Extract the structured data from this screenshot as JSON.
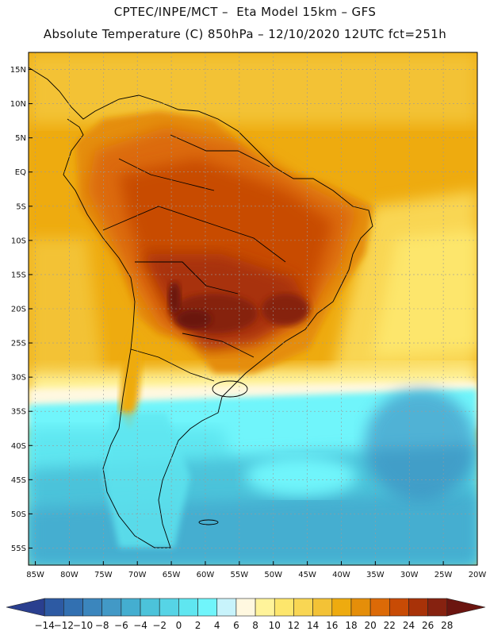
{
  "title_line1": "CPTEC/INPE/MCT –  Eta Model 15km – GFS",
  "title_line2": "Absolute Temperature (C) 850hPa – 12/10/2020 12UTC fct=251h",
  "map": {
    "lat_labels": [
      "15N",
      "10N",
      "5N",
      "EQ",
      "5S",
      "10S",
      "15S",
      "20S",
      "25S",
      "30S",
      "35S",
      "40S",
      "45S",
      "50S",
      "55S"
    ],
    "lon_labels": [
      "85W",
      "80W",
      "75W",
      "70W",
      "65W",
      "60W",
      "55W",
      "50W",
      "45W",
      "40W",
      "35W",
      "30W",
      "25W",
      "20W"
    ],
    "lat_range": [
      17.5,
      -57.5
    ],
    "lon_range": [
      -86,
      -20
    ]
  },
  "colorbar": {
    "labels": [
      "-14",
      "-12",
      "-10",
      "-8",
      "-6",
      "-4",
      "-2",
      "0",
      "2",
      "4",
      "6",
      "8",
      "10",
      "12",
      "14",
      "16",
      "18",
      "20",
      "22",
      "24",
      "26",
      "28"
    ],
    "colors": [
      "#2a3f8f",
      "#2d5aa3",
      "#3270b1",
      "#3b86bd",
      "#4299c6",
      "#44aed0",
      "#4cc3da",
      "#56d4e6",
      "#5fe6f0",
      "#70f5fb",
      "#c8f3fb",
      "#fff8e0",
      "#fff39a",
      "#fde66c",
      "#f9d653",
      "#f3c236",
      "#eeab0f",
      "#e58e09",
      "#dc6a07",
      "#c84b05",
      "#a83208",
      "#862210",
      "#6b1510"
    ]
  },
  "colors": {
    "ocean_cold": "#44aed0",
    "ocean_warm": "#eeab0f",
    "land_hot": "#a83208",
    "land_hottest": "#6b1510"
  }
}
